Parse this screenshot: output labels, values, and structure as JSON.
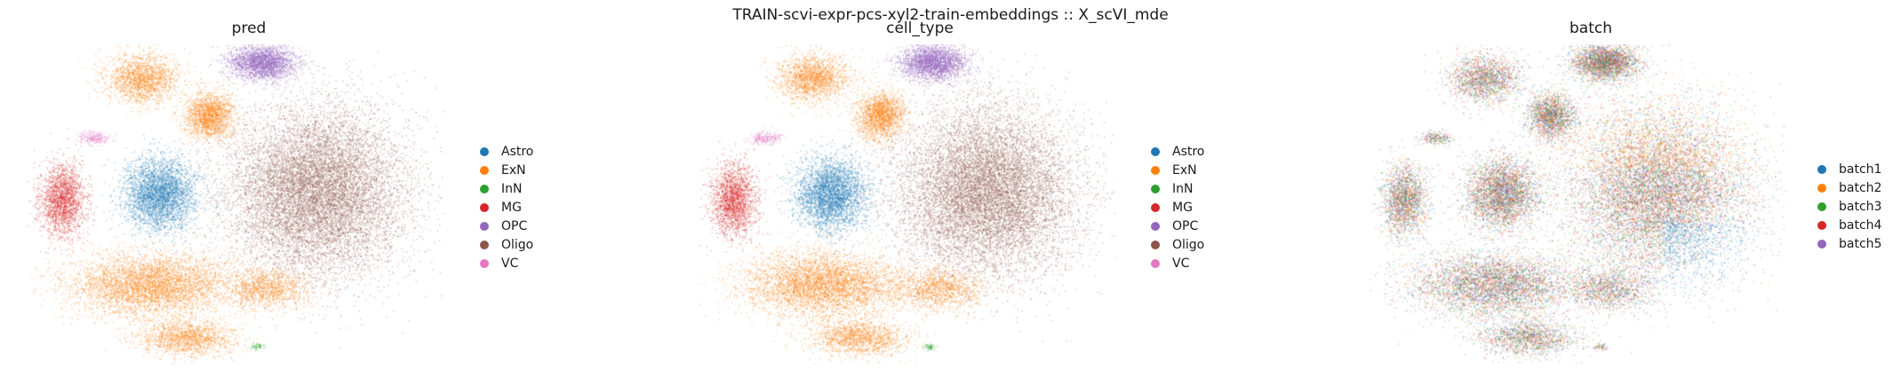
{
  "figure": {
    "title": "TRAIN-scvi-expr-pcs-xyl2-train-embeddings :: X_scVI_mde"
  },
  "colors": {
    "Astro": "#1f77b4",
    "ExN": "#ff7f0e",
    "InN": "#2ca02c",
    "MG": "#d62728",
    "OPC": "#9467bd",
    "Oligo": "#8c564b",
    "VC": "#e377c2",
    "batch1": "#1f77b4",
    "batch2": "#ff7f0e",
    "batch3": "#2ca02c",
    "batch4": "#d62728",
    "batch5": "#9467bd"
  },
  "chart_data": [
    {
      "type": "scatter",
      "title": "pred",
      "legend": [
        "Astro",
        "ExN",
        "InN",
        "MG",
        "OPC",
        "Oligo",
        "VC"
      ],
      "legend_position": "right",
      "axes": "off",
      "grid": false
    },
    {
      "type": "scatter",
      "title": "cell_type",
      "legend": [
        "Astro",
        "ExN",
        "InN",
        "MG",
        "OPC",
        "Oligo",
        "VC"
      ],
      "legend_position": "right",
      "axes": "off",
      "grid": false
    },
    {
      "type": "scatter",
      "title": "batch",
      "legend": [
        "batch1",
        "batch2",
        "batch3",
        "batch4",
        "batch5"
      ],
      "legend_position": "right",
      "axes": "off",
      "grid": false
    }
  ]
}
